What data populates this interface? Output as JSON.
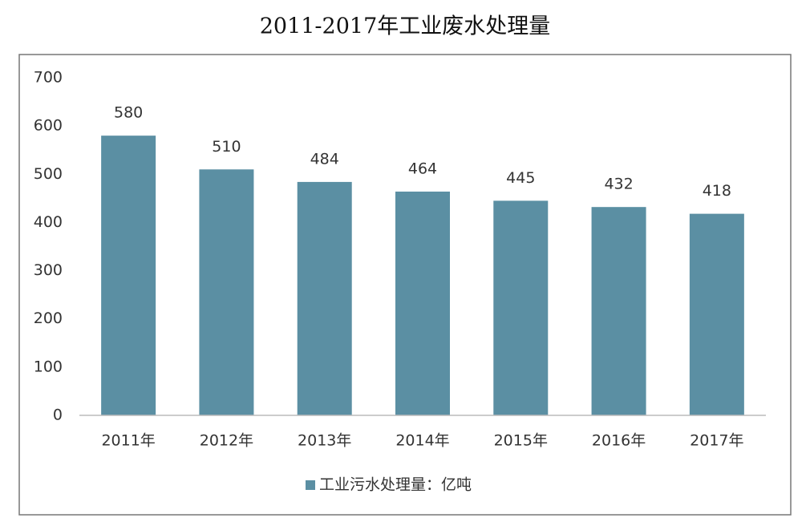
{
  "chart_data": {
    "type": "bar",
    "title": "2011-2017年工业废水处理量",
    "categories": [
      "2011年",
      "2012年",
      "2013年",
      "2014年",
      "2015年",
      "2016年",
      "2017年"
    ],
    "series": [
      {
        "name": "工业污水处理量：亿吨",
        "color": "#5b8fa3",
        "values": [
          580,
          510,
          484,
          464,
          445,
          432,
          418
        ]
      }
    ],
    "ylim": [
      0,
      700
    ],
    "yticks": [
      0,
      100,
      200,
      300,
      400,
      500,
      600,
      700
    ],
    "grid": false,
    "legend": "bottom",
    "data_labels": true
  }
}
